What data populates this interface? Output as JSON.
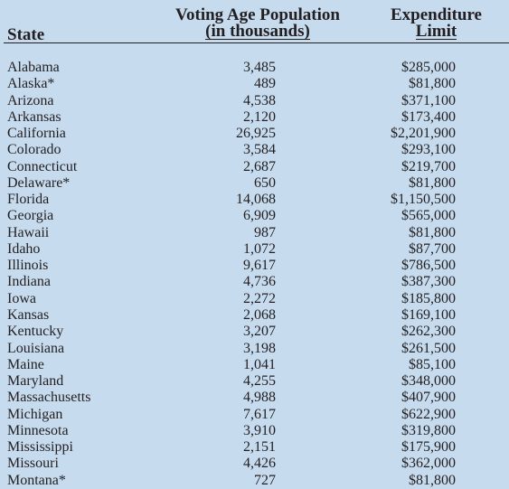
{
  "headers": {
    "state": "State",
    "population_line1": "Voting Age Population",
    "population_line2": "(in thousands)",
    "expenditure_line1": "Expenditure",
    "expenditure_line2": "Limit"
  },
  "rows": [
    {
      "state": "Alabama",
      "population": "3,485",
      "limit": "$285,000"
    },
    {
      "state": "Alaska*",
      "population": "489",
      "limit": "$81,800"
    },
    {
      "state": "Arizona",
      "population": "4,538",
      "limit": "$371,100"
    },
    {
      "state": "Arkansas",
      "population": "2,120",
      "limit": "$173,400"
    },
    {
      "state": "California",
      "population": "26,925",
      "limit": "$2,201,900"
    },
    {
      "state": "Colorado",
      "population": "3,584",
      "limit": "$293,100"
    },
    {
      "state": "Connecticut",
      "population": "2,687",
      "limit": "$219,700"
    },
    {
      "state": "Delaware*",
      "population": "650",
      "limit": "$81,800"
    },
    {
      "state": "Florida",
      "population": "14,068",
      "limit": "$1,150,500"
    },
    {
      "state": "Georgia",
      "population": "6,909",
      "limit": "$565,000"
    },
    {
      "state": "Hawaii",
      "population": "987",
      "limit": "$81,800"
    },
    {
      "state": "Idaho",
      "population": "1,072",
      "limit": "$87,700"
    },
    {
      "state": "Illinois",
      "population": "9,617",
      "limit": "$786,500"
    },
    {
      "state": "Indiana",
      "population": "4,736",
      "limit": "$387,300"
    },
    {
      "state": "Iowa",
      "population": "2,272",
      "limit": "$185,800"
    },
    {
      "state": "Kansas",
      "population": "2,068",
      "limit": "$169,100"
    },
    {
      "state": "Kentucky",
      "population": "3,207",
      "limit": "$262,300"
    },
    {
      "state": "Louisiana",
      "population": "3,198",
      "limit": "$261,500"
    },
    {
      "state": "Maine",
      "population": "1,041",
      "limit": "$85,100"
    },
    {
      "state": "Maryland",
      "population": "4,255",
      "limit": "$348,000"
    },
    {
      "state": "Massachusetts",
      "population": "4,988",
      "limit": "$407,900"
    },
    {
      "state": "Michigan",
      "population": "7,617",
      "limit": "$622,900"
    },
    {
      "state": "Minnesota",
      "population": "3,910",
      "limit": "$319,800"
    },
    {
      "state": "Mississippi",
      "population": "2,151",
      "limit": "$175,900"
    },
    {
      "state": "Missouri",
      "population": "4,426",
      "limit": "$362,000"
    },
    {
      "state": "Montana*",
      "population": "727",
      "limit": "$81,800"
    }
  ]
}
